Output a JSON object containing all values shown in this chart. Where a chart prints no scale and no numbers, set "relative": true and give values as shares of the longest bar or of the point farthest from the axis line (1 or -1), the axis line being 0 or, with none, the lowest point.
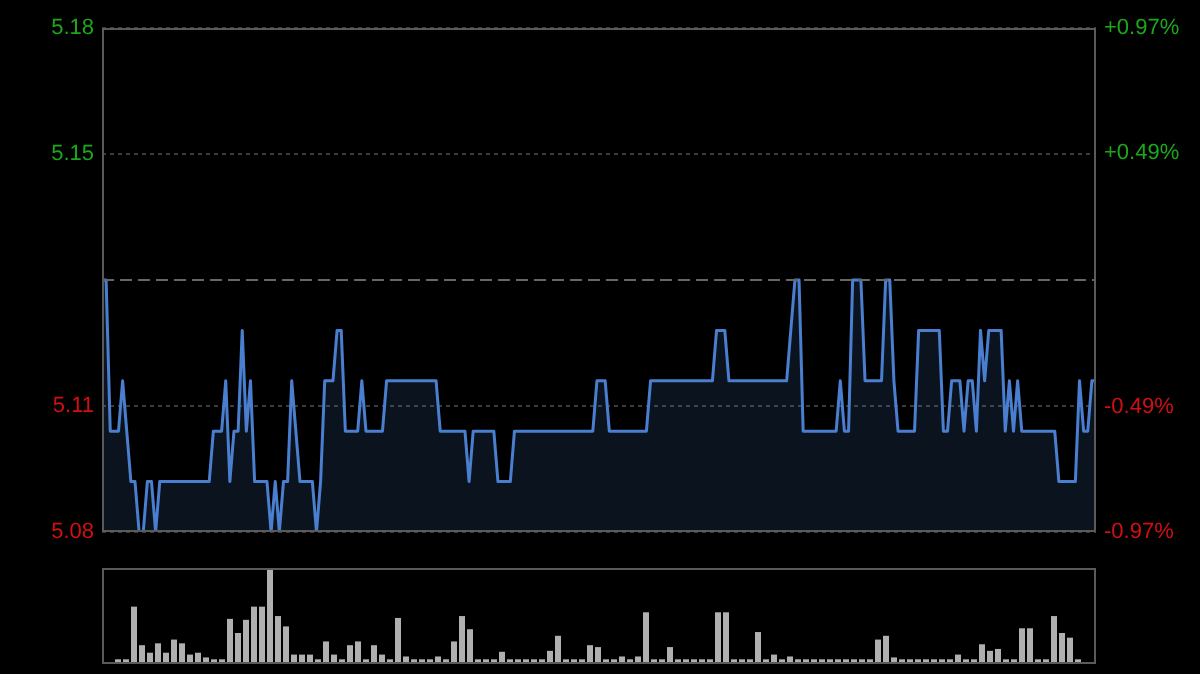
{
  "chart_data": [
    {
      "type": "area",
      "categories": [
        null,
        null,
        null,
        null,
        null,
        null,
        null,
        null,
        null,
        null,
        null,
        null,
        null,
        null,
        null,
        null,
        null,
        null,
        null,
        null,
        null,
        null,
        null,
        null,
        null,
        null,
        null,
        null,
        null,
        null,
        null,
        null,
        null,
        null,
        null,
        null,
        null,
        null,
        null,
        null,
        null,
        null,
        null,
        null,
        null,
        null,
        null,
        null,
        null,
        null,
        null,
        null,
        null,
        null,
        null,
        null,
        null,
        null,
        null,
        null,
        null,
        null,
        null,
        null,
        null,
        null,
        null,
        null,
        null,
        null,
        null,
        null,
        null,
        null,
        null,
        null,
        null,
        null,
        null,
        null,
        null,
        null,
        null,
        null,
        null,
        null,
        null,
        null,
        null,
        null,
        null,
        null,
        null,
        null,
        null,
        null,
        null,
        null,
        null,
        null,
        null,
        null,
        null,
        null,
        null,
        null,
        null,
        null,
        null,
        null,
        null,
        null,
        null,
        null,
        null,
        null,
        null,
        null,
        null,
        null,
        null,
        null,
        null,
        null,
        null,
        null,
        null,
        null,
        null,
        null,
        null,
        null,
        null,
        null,
        null,
        null,
        null,
        null,
        null,
        null,
        null,
        null,
        null,
        null,
        null,
        null,
        null,
        null,
        null,
        null,
        null,
        null,
        null,
        null,
        null,
        null,
        null,
        null,
        null,
        null,
        null,
        null,
        null,
        null,
        null,
        null,
        null,
        null,
        null,
        null,
        null,
        null,
        null,
        null,
        null,
        null,
        null,
        null,
        null,
        null,
        null,
        null,
        null,
        null,
        null,
        null,
        null,
        null,
        null,
        null,
        null,
        null,
        null,
        null,
        null,
        null,
        null,
        null,
        null,
        null,
        null,
        null,
        null,
        null,
        null,
        null,
        null,
        null,
        null,
        null,
        null,
        null,
        null,
        null,
        null,
        null,
        null,
        null,
        null,
        null,
        null,
        null,
        null,
        null,
        null,
        null,
        null,
        null,
        null,
        null,
        null,
        null,
        null,
        null,
        null,
        null,
        null,
        null,
        null,
        null,
        null,
        null
      ],
      "series": [
        {
          "color": "#4a7fd0",
          "values": [
            5.13,
            5.13,
            5.1,
            5.1,
            5.1,
            5.11,
            5.1,
            5.09,
            5.09,
            5.08,
            5.08,
            5.09,
            5.09,
            5.08,
            5.09,
            5.09,
            5.09,
            5.09,
            5.09,
            5.09,
            5.09,
            5.09,
            5.09,
            5.09,
            5.09,
            5.09,
            5.09,
            5.1,
            5.1,
            5.1,
            5.11,
            5.09,
            5.1,
            5.1,
            5.12,
            5.1,
            5.11,
            5.09,
            5.09,
            5.09,
            5.09,
            5.08,
            5.09,
            5.08,
            5.09,
            5.09,
            5.11,
            5.1,
            5.09,
            5.09,
            5.09,
            5.09,
            5.08,
            5.09,
            5.11,
            5.11,
            5.11,
            5.12,
            5.12,
            5.1,
            5.1,
            5.1,
            5.1,
            5.11,
            5.1,
            5.1,
            5.1,
            5.1,
            5.1,
            5.11,
            5.11,
            5.11,
            5.11,
            5.11,
            5.11,
            5.11,
            5.11,
            5.11,
            5.11,
            5.11,
            5.11,
            5.11,
            5.1,
            5.1,
            5.1,
            5.1,
            5.1,
            5.1,
            5.1,
            5.09,
            5.1,
            5.1,
            5.1,
            5.1,
            5.1,
            5.1,
            5.09,
            5.09,
            5.09,
            5.09,
            5.1,
            5.1,
            5.1,
            5.1,
            5.1,
            5.1,
            5.1,
            5.1,
            5.1,
            5.1,
            5.1,
            5.1,
            5.1,
            5.1,
            5.1,
            5.1,
            5.1,
            5.1,
            5.1,
            5.1,
            5.11,
            5.11,
            5.11,
            5.1,
            5.1,
            5.1,
            5.1,
            5.1,
            5.1,
            5.1,
            5.1,
            5.1,
            5.1,
            5.11,
            5.11,
            5.11,
            5.11,
            5.11,
            5.11,
            5.11,
            5.11,
            5.11,
            5.11,
            5.11,
            5.11,
            5.11,
            5.11,
            5.11,
            5.11,
            5.12,
            5.12,
            5.12,
            5.11,
            5.11,
            5.11,
            5.11,
            5.11,
            5.11,
            5.11,
            5.11,
            5.11,
            5.11,
            5.11,
            5.11,
            5.11,
            5.11,
            5.11,
            5.12,
            5.13,
            5.13,
            5.1,
            5.1,
            5.1,
            5.1,
            5.1,
            5.1,
            5.1,
            5.1,
            5.1,
            5.11,
            5.1,
            5.1,
            5.13,
            5.13,
            5.13,
            5.11,
            5.11,
            5.11,
            5.11,
            5.11,
            5.13,
            5.13,
            5.11,
            5.1,
            5.1,
            5.1,
            5.1,
            5.1,
            5.12,
            5.12,
            5.12,
            5.12,
            5.12,
            5.12,
            5.1,
            5.1,
            5.11,
            5.11,
            5.11,
            5.1,
            5.11,
            5.11,
            5.1,
            5.12,
            5.11,
            5.12,
            5.12,
            5.12,
            5.12,
            5.1,
            5.11,
            5.1,
            5.11,
            5.1,
            5.1,
            5.1,
            5.1,
            5.1,
            5.1,
            5.1,
            5.1,
            5.1,
            5.09,
            5.09,
            5.09,
            5.09,
            5.09,
            5.11,
            5.1,
            5.1,
            5.11,
            5.11
          ]
        }
      ],
      "ylim": [
        5.08,
        5.18
      ],
      "yticks": [
        {
          "value": 5.18,
          "label": "5.18"
        },
        {
          "value": 5.155,
          "label": "5.15"
        },
        {
          "value": 5.105,
          "label": "5.11"
        },
        {
          "value": 5.08,
          "label": "5.08"
        }
      ],
      "y2lim": [
        -0.97,
        0.97
      ],
      "y2ticks": [
        {
          "value": 0.97,
          "label": "+0.97%"
        },
        {
          "value": 0.49,
          "label": "+0.49%"
        },
        {
          "value": -0.49,
          "label": "-0.49%"
        },
        {
          "value": -0.97,
          "label": "-0.97%"
        }
      ],
      "ref_lines": [
        {
          "axis": "y",
          "value": 5.13,
          "line_style": "dashed",
          "color": "#666666"
        }
      ],
      "grid": "y",
      "tick_labels": "y"
    },
    {
      "type": "bar",
      "relative": true,
      "color": "#b0b0b0",
      "categories": [
        null,
        null,
        null,
        null,
        null,
        null,
        null,
        null,
        null,
        null,
        null,
        null,
        null,
        null,
        null,
        null,
        null,
        null,
        null,
        null,
        null,
        null,
        null,
        null,
        null,
        null,
        null,
        null,
        null,
        null,
        null,
        null,
        null,
        null,
        null,
        null,
        null,
        null,
        null,
        null,
        null,
        null,
        null,
        null,
        null,
        null,
        null,
        null,
        null,
        null,
        null,
        null,
        null,
        null,
        null,
        null,
        null,
        null,
        null,
        null,
        null,
        null,
        null,
        null,
        null,
        null,
        null,
        null,
        null,
        null,
        null,
        null,
        null,
        null,
        null,
        null,
        null,
        null,
        null,
        null,
        null,
        null,
        null,
        null,
        null,
        null,
        null,
        null,
        null,
        null,
        null,
        null,
        null,
        null,
        null,
        null,
        null,
        null,
        null,
        null,
        null,
        null,
        null,
        null,
        null,
        null,
        null,
        null,
        null,
        null,
        null,
        null,
        null,
        null,
        null,
        null,
        null,
        null,
        null,
        null,
        null
      ],
      "values": [
        0.05,
        0.05,
        0.61,
        0.2,
        0.12,
        0.22,
        0.12,
        0.26,
        0.22,
        0.1,
        0.12,
        0.07,
        0.05,
        0.05,
        0.48,
        0.33,
        0.47,
        0.61,
        0.61,
        1,
        0.51,
        0.4,
        0.1,
        0.1,
        0.1,
        0.05,
        0.24,
        0.1,
        0.05,
        0.2,
        0.24,
        0.05,
        0.2,
        0.1,
        0.05,
        0.49,
        0.08,
        0.05,
        0.05,
        0.05,
        0.08,
        0.05,
        0.24,
        0.51,
        0.37,
        0.05,
        0.05,
        0.05,
        0.13,
        0.05,
        0.05,
        0.05,
        0.05,
        0.05,
        0.14,
        0.3,
        0.05,
        0.05,
        0.05,
        0.2,
        0.18,
        0.05,
        0.05,
        0.08,
        0.05,
        0.08,
        0.55,
        0.05,
        0.05,
        0.18,
        0.05,
        0.05,
        0.05,
        0.05,
        0.05,
        0.55,
        0.55,
        0.05,
        0.05,
        0.05,
        0.34,
        0.05,
        0.1,
        0.05,
        0.08,
        0.05,
        0.05,
        0.05,
        0.05,
        0.05,
        0.05,
        0.05,
        0.05,
        0.05,
        0.05,
        0.26,
        0.3,
        0.07,
        0.05,
        0.05,
        0.05,
        0.05,
        0.05,
        0.05,
        0.05,
        0.1,
        0.05,
        0.05,
        0.21,
        0.14,
        0.16,
        0.05,
        0.05,
        0.38,
        0.38,
        0.05,
        0.05,
        0.51,
        0.33,
        0.28,
        0.05
      ]
    }
  ]
}
